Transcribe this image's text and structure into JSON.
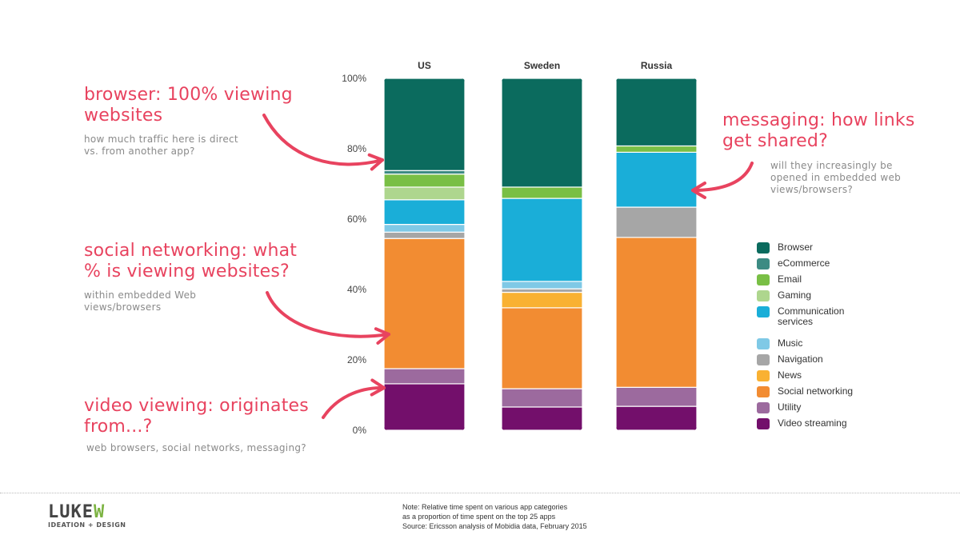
{
  "chart_data": {
    "type": "bar",
    "stacked": true,
    "normalized_100": true,
    "title": "",
    "xlabel": "",
    "ylabel": "",
    "ylim": [
      0,
      100
    ],
    "y_ticks": [
      "0%",
      "20%",
      "40%",
      "60%",
      "80%",
      "100%"
    ],
    "y_tick_values": [
      0,
      20,
      40,
      60,
      80,
      100
    ],
    "categories": [
      "US",
      "Sweden",
      "Russia"
    ],
    "series": [
      {
        "name": "Video streaming",
        "color": "#730f6b",
        "values": [
          13.2,
          6.6,
          6.8
        ]
      },
      {
        "name": "Utility",
        "color": "#9c6a9e",
        "values": [
          4.3,
          5.2,
          5.4
        ]
      },
      {
        "name": "Social networking",
        "color": "#f28c32",
        "values": [
          37.0,
          23.0,
          42.6
        ]
      },
      {
        "name": "News",
        "color": "#f9b132",
        "values": [
          0,
          4.4,
          0
        ]
      },
      {
        "name": "Navigation",
        "color": "#a6a6a6",
        "values": [
          1.8,
          1.0,
          8.6
        ]
      },
      {
        "name": "Music",
        "color": "#7fc9e6",
        "values": [
          2.2,
          2.1,
          0
        ]
      },
      {
        "name": "Communication services",
        "color": "#1aaed8",
        "values": [
          7.0,
          23.6,
          15.6
        ]
      },
      {
        "name": "Gaming",
        "color": "#aed68e",
        "values": [
          3.6,
          0,
          0
        ]
      },
      {
        "name": "Email",
        "color": "#79bf45",
        "values": [
          3.7,
          3.2,
          1.8
        ]
      },
      {
        "name": "eCommerce",
        "color": "#3c8b83",
        "values": [
          1.0,
          0,
          0
        ]
      },
      {
        "name": "Browser",
        "color": "#0b6b5e",
        "values": [
          26.2,
          30.9,
          19.2
        ]
      }
    ],
    "legend_position": "right",
    "legend_order": [
      "Browser",
      "eCommerce",
      "Email",
      "Gaming",
      "Communication services",
      "Music",
      "Navigation",
      "News",
      "Social networking",
      "Utility",
      "Video streaming"
    ]
  },
  "annotations": {
    "browser": {
      "title": "browser: 100% viewing websites",
      "subtitle": "how much traffic here is direct vs. from another app?"
    },
    "social": {
      "title": "social networking: what % is viewing websites?",
      "subtitle": "within embedded Web views/browsers"
    },
    "video": {
      "title": "video viewing: originates from...?",
      "subtitle": "web browsers, social networks, messaging?"
    },
    "messaging": {
      "title": "messaging: how links get shared?",
      "subtitle": "will they increasingly be opened in embedded web views/browsers?"
    }
  },
  "arrow_color": "#e8435f",
  "footer": {
    "logo_main": "LUKE",
    "logo_accent": "W",
    "logo_sub": "IDEATION + DESIGN",
    "note_lines": [
      "Note: Relative time spent on various app categories",
      "as a proportion of time spent on the top 25 apps",
      "Source: Ericsson analysis of Mobidia data, February 2015"
    ]
  }
}
